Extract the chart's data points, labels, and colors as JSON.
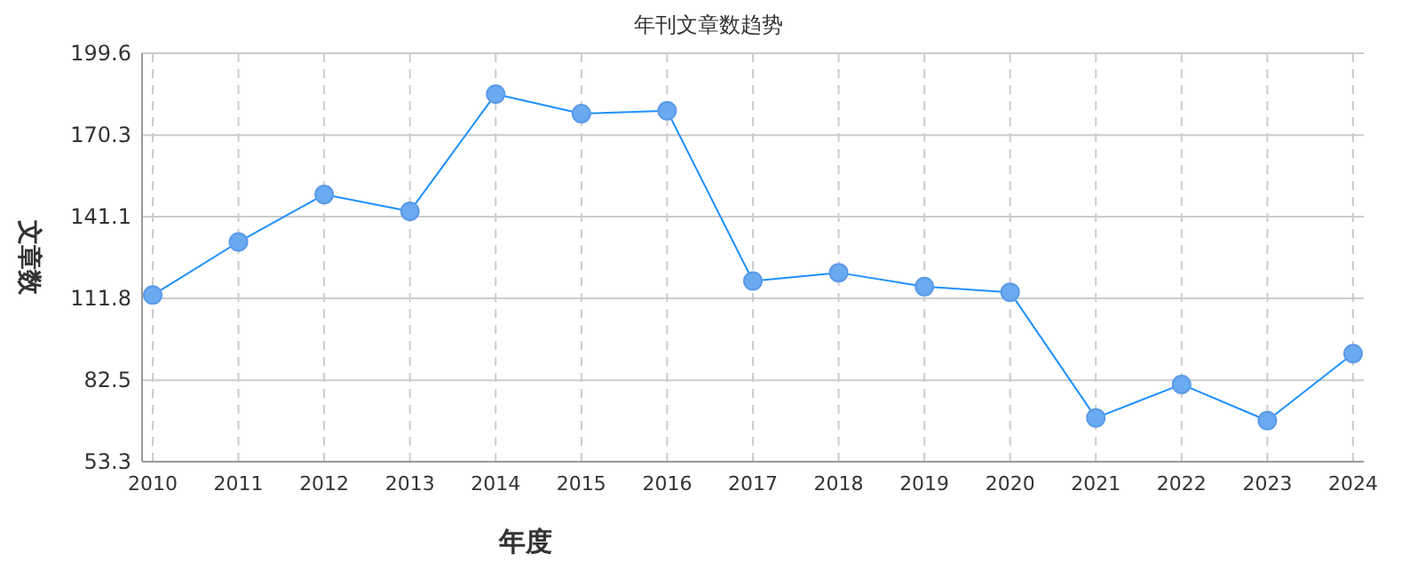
{
  "chart_data": {
    "type": "line",
    "title": "年刊文章数趋势",
    "xlabel": "年度",
    "ylabel": "文章数",
    "categories": [
      "2010",
      "2011",
      "2012",
      "2013",
      "2014",
      "2015",
      "2016",
      "2017",
      "2018",
      "2019",
      "2020",
      "2021",
      "2022",
      "2023",
      "2024"
    ],
    "series": [
      {
        "color": "#1e90ff",
        "values": [
          113,
          132,
          149,
          143,
          185,
          178,
          179,
          118,
          121,
          116,
          114,
          69,
          81,
          68,
          92
        ]
      }
    ],
    "ylim": [
      53.3,
      199.6
    ],
    "yticks": [
      53.3,
      82.5,
      111.8,
      141.1,
      170.3,
      199.6
    ],
    "grid": true,
    "marker": "circle",
    "line_style": "solid"
  }
}
